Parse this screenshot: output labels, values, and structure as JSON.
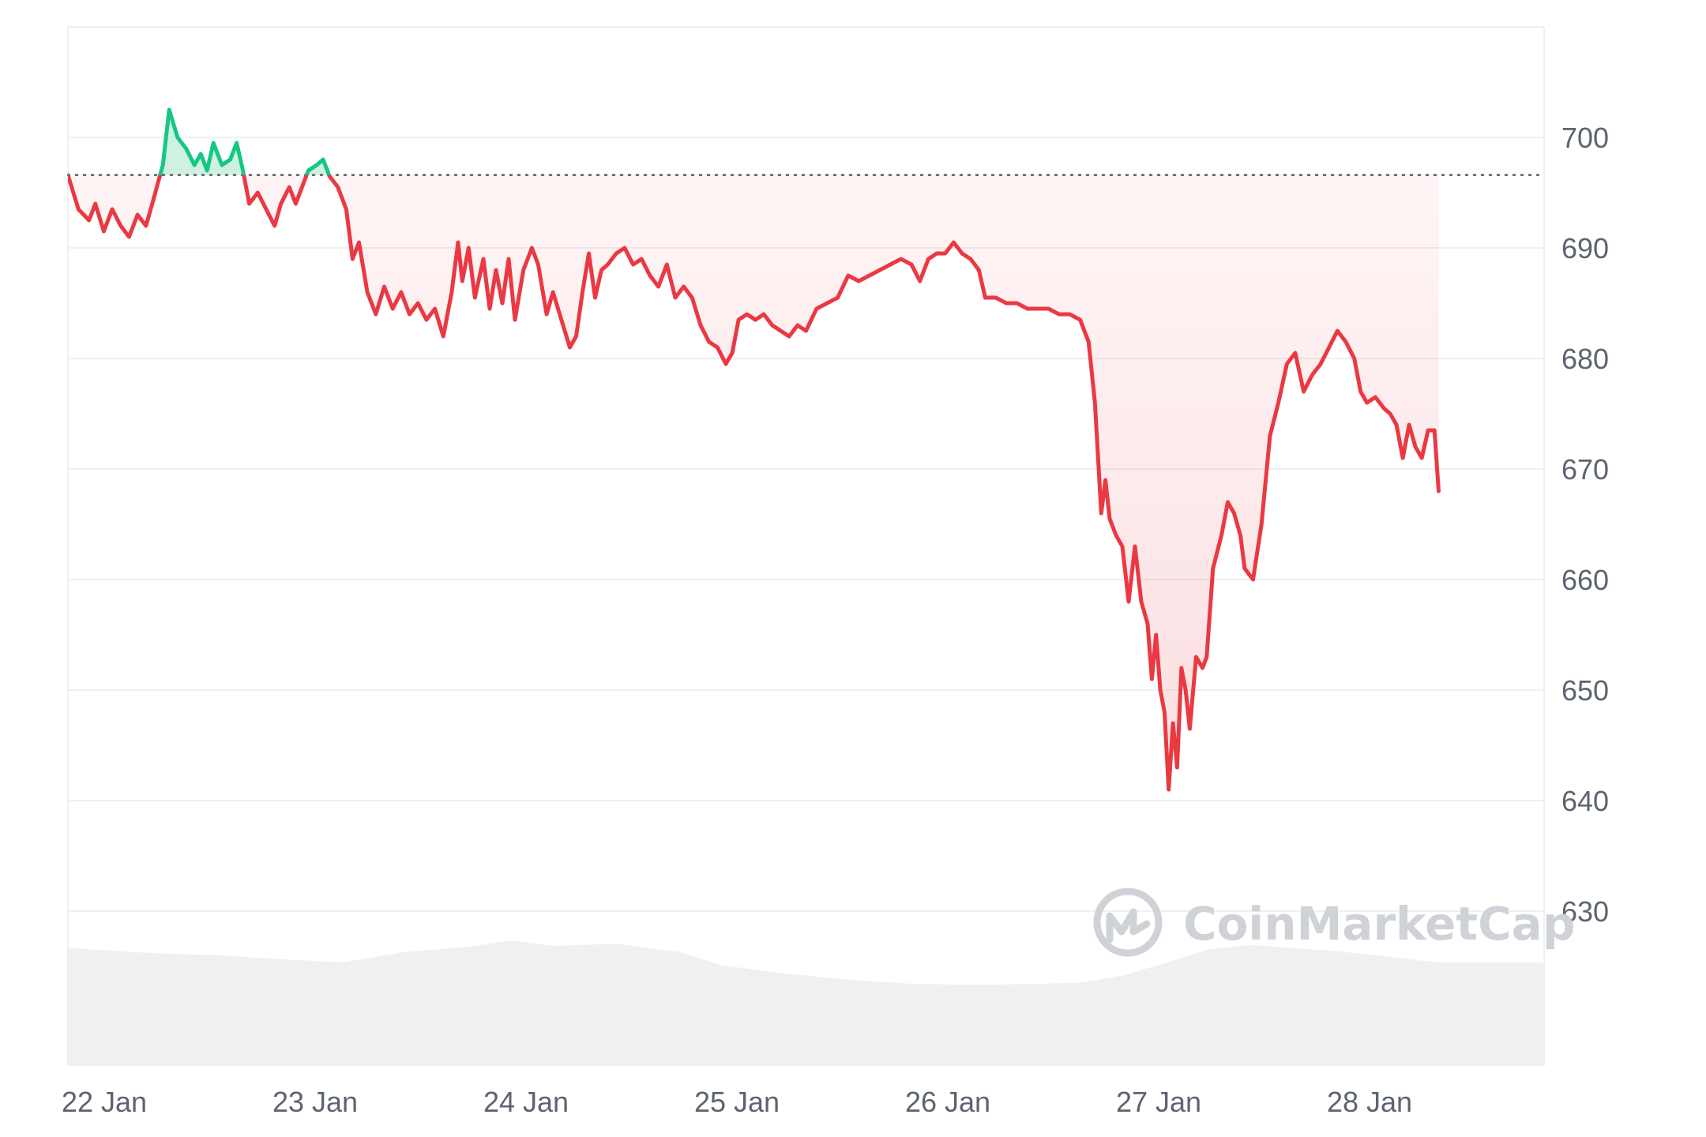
{
  "watermark": {
    "brand": "CoinMarketCap",
    "logo_icon": "coinmarketcap-logo-icon"
  },
  "colors": {
    "down": "#ea3943",
    "up": "#16c784",
    "down_fill": "#fbe3e5",
    "up_fill": "#c6efdd",
    "grid": "#eef0f3",
    "baseline": "#555b63",
    "volume": "#eef0f2",
    "tick": "#5d6470",
    "watermark": "#cfd3d8"
  },
  "chart_data": {
    "type": "line",
    "title": "",
    "xlabel": "",
    "ylabel": "",
    "x_tick_labels": [
      "22 Jan",
      "23 Jan",
      "24 Jan",
      "25 Jan",
      "26 Jan",
      "27 Jan",
      "28 Jan"
    ],
    "y_ticks": [
      630,
      640,
      650,
      660,
      670,
      680,
      690,
      700
    ],
    "ylim": [
      616,
      710
    ],
    "xlim_days": [
      0,
      7.0
    ],
    "x_unit": "days after 22 Jan 00:00",
    "baseline": 696.6,
    "grid": true,
    "y_axis_position": "right",
    "series": [
      {
        "values": [
          [
            0.0,
            696.6
          ],
          [
            0.05,
            693.5
          ],
          [
            0.1,
            692.5
          ],
          [
            0.13,
            694.0
          ],
          [
            0.17,
            691.5
          ],
          [
            0.21,
            693.5
          ],
          [
            0.25,
            692.0
          ],
          [
            0.29,
            691.0
          ],
          [
            0.33,
            693.0
          ],
          [
            0.37,
            692.0
          ],
          [
            0.4,
            694.0
          ],
          [
            0.45,
            697.5
          ],
          [
            0.48,
            702.5
          ],
          [
            0.52,
            700.0
          ],
          [
            0.56,
            699.0
          ],
          [
            0.6,
            697.5
          ],
          [
            0.63,
            698.5
          ],
          [
            0.66,
            697.0
          ],
          [
            0.69,
            699.5
          ],
          [
            0.73,
            697.5
          ],
          [
            0.77,
            698.0
          ],
          [
            0.8,
            699.5
          ],
          [
            0.83,
            697.0
          ],
          [
            0.86,
            694.0
          ],
          [
            0.9,
            695.0
          ],
          [
            0.94,
            693.5
          ],
          [
            0.98,
            692.0
          ],
          [
            1.01,
            694.0
          ],
          [
            1.05,
            695.5
          ],
          [
            1.08,
            694.0
          ],
          [
            1.11,
            695.5
          ],
          [
            1.14,
            697.0
          ],
          [
            1.18,
            697.5
          ],
          [
            1.21,
            698.0
          ],
          [
            1.24,
            696.5
          ],
          [
            1.28,
            695.5
          ],
          [
            1.32,
            693.5
          ],
          [
            1.35,
            689.0
          ],
          [
            1.38,
            690.5
          ],
          [
            1.42,
            686.0
          ],
          [
            1.46,
            684.0
          ],
          [
            1.5,
            686.5
          ],
          [
            1.54,
            684.5
          ],
          [
            1.58,
            686.0
          ],
          [
            1.62,
            684.0
          ],
          [
            1.66,
            685.0
          ],
          [
            1.7,
            683.5
          ],
          [
            1.74,
            684.5
          ],
          [
            1.78,
            682.0
          ],
          [
            1.82,
            686.0
          ],
          [
            1.85,
            690.5
          ],
          [
            1.87,
            687.0
          ],
          [
            1.9,
            690.0
          ],
          [
            1.93,
            685.5
          ],
          [
            1.97,
            689.0
          ],
          [
            2.0,
            684.5
          ],
          [
            2.03,
            688.0
          ],
          [
            2.06,
            685.0
          ],
          [
            2.09,
            689.0
          ],
          [
            2.12,
            683.5
          ],
          [
            2.16,
            688.0
          ],
          [
            2.2,
            690.0
          ],
          [
            2.23,
            688.5
          ],
          [
            2.27,
            684.0
          ],
          [
            2.3,
            686.0
          ],
          [
            2.34,
            683.5
          ],
          [
            2.38,
            681.0
          ],
          [
            2.41,
            682.0
          ],
          [
            2.44,
            686.0
          ],
          [
            2.47,
            689.5
          ],
          [
            2.5,
            685.5
          ],
          [
            2.53,
            688.0
          ],
          [
            2.56,
            688.5
          ],
          [
            2.6,
            689.5
          ],
          [
            2.64,
            690.0
          ],
          [
            2.68,
            688.5
          ],
          [
            2.72,
            689.0
          ],
          [
            2.76,
            687.5
          ],
          [
            2.8,
            686.5
          ],
          [
            2.84,
            688.5
          ],
          [
            2.88,
            685.5
          ],
          [
            2.92,
            686.5
          ],
          [
            2.96,
            685.5
          ],
          [
            3.0,
            683.0
          ],
          [
            3.04,
            681.5
          ],
          [
            3.08,
            681.0
          ],
          [
            3.12,
            679.5
          ],
          [
            3.15,
            680.5
          ],
          [
            3.18,
            683.5
          ],
          [
            3.22,
            684.0
          ],
          [
            3.26,
            683.5
          ],
          [
            3.3,
            684.0
          ],
          [
            3.34,
            683.0
          ],
          [
            3.38,
            682.5
          ],
          [
            3.42,
            682.0
          ],
          [
            3.46,
            683.0
          ],
          [
            3.5,
            682.5
          ],
          [
            3.55,
            684.5
          ],
          [
            3.6,
            685.0
          ],
          [
            3.65,
            685.5
          ],
          [
            3.7,
            687.5
          ],
          [
            3.75,
            687.0
          ],
          [
            3.8,
            687.5
          ],
          [
            3.85,
            688.0
          ],
          [
            3.9,
            688.5
          ],
          [
            3.95,
            689.0
          ],
          [
            4.0,
            688.5
          ],
          [
            4.04,
            687.0
          ],
          [
            4.08,
            689.0
          ],
          [
            4.12,
            689.5
          ],
          [
            4.16,
            689.5
          ],
          [
            4.2,
            690.5
          ],
          [
            4.24,
            689.5
          ],
          [
            4.28,
            689.0
          ],
          [
            4.32,
            688.0
          ],
          [
            4.35,
            685.5
          ],
          [
            4.4,
            685.5
          ],
          [
            4.45,
            685.0
          ],
          [
            4.5,
            685.0
          ],
          [
            4.55,
            684.5
          ],
          [
            4.6,
            684.5
          ],
          [
            4.65,
            684.5
          ],
          [
            4.7,
            684.0
          ],
          [
            4.75,
            684.0
          ],
          [
            4.8,
            683.5
          ],
          [
            4.84,
            681.5
          ],
          [
            4.87,
            676.0
          ],
          [
            4.9,
            666.0
          ],
          [
            4.92,
            669.0
          ],
          [
            4.94,
            665.5
          ],
          [
            4.97,
            664.0
          ],
          [
            5.0,
            663.0
          ],
          [
            5.03,
            658.0
          ],
          [
            5.06,
            663.0
          ],
          [
            5.09,
            658.0
          ],
          [
            5.12,
            656.0
          ],
          [
            5.14,
            651.0
          ],
          [
            5.16,
            655.0
          ],
          [
            5.18,
            650.0
          ],
          [
            5.2,
            648.0
          ],
          [
            5.22,
            641.0
          ],
          [
            5.24,
            647.0
          ],
          [
            5.26,
            643.0
          ],
          [
            5.28,
            652.0
          ],
          [
            5.3,
            650.0
          ],
          [
            5.32,
            646.5
          ],
          [
            5.35,
            653.0
          ],
          [
            5.38,
            652.0
          ],
          [
            5.4,
            653.0
          ],
          [
            5.43,
            661.0
          ],
          [
            5.47,
            664.0
          ],
          [
            5.5,
            667.0
          ],
          [
            5.53,
            666.0
          ],
          [
            5.56,
            664.0
          ],
          [
            5.58,
            661.0
          ],
          [
            5.62,
            660.0
          ],
          [
            5.66,
            665.0
          ],
          [
            5.7,
            673.0
          ],
          [
            5.74,
            676.0
          ],
          [
            5.78,
            679.5
          ],
          [
            5.82,
            680.5
          ],
          [
            5.86,
            677.0
          ],
          [
            5.9,
            678.5
          ],
          [
            5.94,
            679.5
          ],
          [
            5.98,
            681.0
          ],
          [
            6.02,
            682.5
          ],
          [
            6.06,
            681.5
          ],
          [
            6.1,
            680.0
          ],
          [
            6.13,
            677.0
          ],
          [
            6.16,
            676.0
          ],
          [
            6.2,
            676.5
          ],
          [
            6.24,
            675.5
          ],
          [
            6.27,
            675.0
          ],
          [
            6.3,
            674.0
          ],
          [
            6.33,
            671.0
          ],
          [
            6.36,
            674.0
          ],
          [
            6.39,
            672.0
          ],
          [
            6.42,
            671.0
          ],
          [
            6.45,
            673.5
          ],
          [
            6.48,
            673.5
          ],
          [
            6.5,
            668.0
          ]
        ]
      }
    ],
    "volume": {
      "x": [
        0.0,
        0.3,
        0.5,
        0.7,
        1.0,
        1.3,
        1.6,
        1.9,
        2.1,
        2.3,
        2.6,
        2.9,
        3.1,
        3.4,
        3.7,
        4.0,
        4.3,
        4.6,
        4.8,
        5.0,
        5.2,
        5.4,
        5.6,
        5.8,
        6.0,
        6.2,
        6.4,
        6.5
      ],
      "values": [
        115,
        111,
        109,
        108,
        104,
        101,
        111,
        116,
        122,
        117,
        119,
        111,
        98,
        90,
        84,
        80,
        79,
        80,
        81,
        88,
        100,
        113,
        118,
        115,
        112,
        108,
        103,
        101
      ]
    }
  }
}
